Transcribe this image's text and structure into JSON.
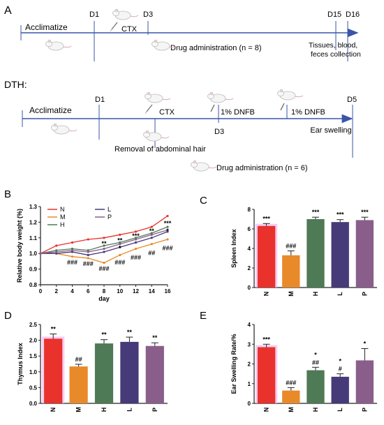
{
  "panelA": {
    "letter": "A",
    "markers": [
      "D1",
      "D3",
      "D15",
      "D16"
    ],
    "acclimatize": "Acclimatize",
    "ctx": "CTX",
    "drug": "Drug administration (n = 8)",
    "collection_line1": "Tissues, blood,",
    "collection_line2": "feces collection"
  },
  "dth": {
    "title": "DTH:",
    "markers": [
      "D1",
      "D3",
      "D5"
    ],
    "acclimatize": "Acclimatize",
    "ctx": "CTX",
    "dnfb1": "1% DNFB",
    "dnfb2": "1% DNFB",
    "removal": "Removal of abdominal hair",
    "ear": "Ear swelling",
    "drug": "Drug administration (n = 6)"
  },
  "colors": {
    "arrow": "#3a55a8",
    "N": "#e8322b",
    "M": "#e88a2a",
    "H": "#4e7a56",
    "L": "#463a78",
    "P": "#8a5e8a",
    "glow": "#f4b8f0"
  },
  "chart_data": [
    {
      "panel": "B",
      "type": "line",
      "xlabel": "day",
      "ylabel": "Relative body weight (%)",
      "xlim": [
        0,
        16
      ],
      "ylim": [
        0.8,
        1.3
      ],
      "xticks": [
        "0",
        "2",
        "4",
        "6",
        "8",
        "10",
        "12",
        "14",
        "16"
      ],
      "yticks": [
        "0.8",
        "0.9",
        "1.0",
        "1.1",
        "1.2",
        "1.3"
      ],
      "x": [
        0,
        2,
        4,
        6,
        8,
        10,
        12,
        14,
        16
      ],
      "legend": [
        "N",
        "M",
        "H",
        "L",
        "P"
      ],
      "series": [
        {
          "name": "N",
          "values": [
            1.0,
            1.05,
            1.07,
            1.09,
            1.1,
            1.12,
            1.14,
            1.17,
            1.24
          ]
        },
        {
          "name": "M",
          "values": [
            1.0,
            1.0,
            0.98,
            0.97,
            0.94,
            0.99,
            1.03,
            1.06,
            1.09
          ]
        },
        {
          "name": "H",
          "values": [
            1.0,
            1.02,
            1.03,
            1.02,
            1.05,
            1.07,
            1.1,
            1.13,
            1.17
          ]
        },
        {
          "name": "L",
          "values": [
            1.0,
            1.0,
            1.01,
            0.99,
            1.01,
            1.04,
            1.07,
            1.1,
            1.14
          ]
        },
        {
          "name": "P",
          "values": [
            1.0,
            1.01,
            1.02,
            1.01,
            1.03,
            1.06,
            1.09,
            1.12,
            1.15
          ]
        }
      ],
      "annotations": [
        {
          "x": 4,
          "y": 0.93,
          "text": "###"
        },
        {
          "x": 6,
          "y": 0.92,
          "text": "###"
        },
        {
          "x": 8,
          "y": 0.89,
          "text": "###"
        },
        {
          "x": 8,
          "y": 1.05,
          "text": "**"
        },
        {
          "x": 10,
          "y": 0.93,
          "text": "###"
        },
        {
          "x": 10,
          "y": 1.07,
          "text": "**"
        },
        {
          "x": 10,
          "y": 1.02,
          "text": "*"
        },
        {
          "x": 12,
          "y": 0.96,
          "text": "###"
        },
        {
          "x": 12,
          "y": 1.1,
          "text": "***"
        },
        {
          "x": 14,
          "y": 0.99,
          "text": "##"
        },
        {
          "x": 14,
          "y": 1.13,
          "text": "**"
        },
        {
          "x": 16,
          "y": 1.02,
          "text": "###"
        },
        {
          "x": 16,
          "y": 1.18,
          "text": "***"
        },
        {
          "x": 16,
          "y": 1.13,
          "text": "*"
        }
      ]
    },
    {
      "panel": "C",
      "type": "bar",
      "ylabel": "Spleen Index",
      "ylim": [
        0,
        8
      ],
      "yticks": [
        "0",
        "2",
        "4",
        "6",
        "8"
      ],
      "categories": [
        "N",
        "M",
        "H",
        "L",
        "P"
      ],
      "values": [
        6.3,
        3.3,
        7.0,
        6.7,
        6.9
      ],
      "errors": [
        0.25,
        0.45,
        0.2,
        0.25,
        0.3
      ],
      "labels": [
        "***",
        "###",
        "***",
        "***",
        "***"
      ]
    },
    {
      "panel": "D",
      "type": "bar",
      "ylabel": "Thymus Index",
      "ylim": [
        0,
        2.5
      ],
      "yticks": [
        "0.0",
        "0.5",
        "1.0",
        "1.5",
        "2.0",
        "2.5"
      ],
      "categories": [
        "N",
        "M",
        "H",
        "L",
        "P"
      ],
      "values": [
        2.05,
        1.17,
        1.9,
        1.95,
        1.82
      ],
      "errors": [
        0.15,
        0.07,
        0.12,
        0.15,
        0.1
      ],
      "labels": [
        "**",
        "##",
        "**",
        "**",
        "**"
      ]
    },
    {
      "panel": "E",
      "type": "bar",
      "ylabel": "Ear Swelling Rate/%",
      "ylim": [
        0,
        4
      ],
      "yticks": [
        "0",
        "1",
        "2",
        "3",
        "4"
      ],
      "categories": [
        "N",
        "M",
        "H",
        "L",
        "P"
      ],
      "values": [
        2.85,
        0.65,
        1.68,
        1.35,
        2.18
      ],
      "errors": [
        0.15,
        0.15,
        0.15,
        0.15,
        0.6
      ],
      "labels": [
        "***",
        "###",
        "*|##",
        "*|#",
        "*"
      ]
    }
  ]
}
